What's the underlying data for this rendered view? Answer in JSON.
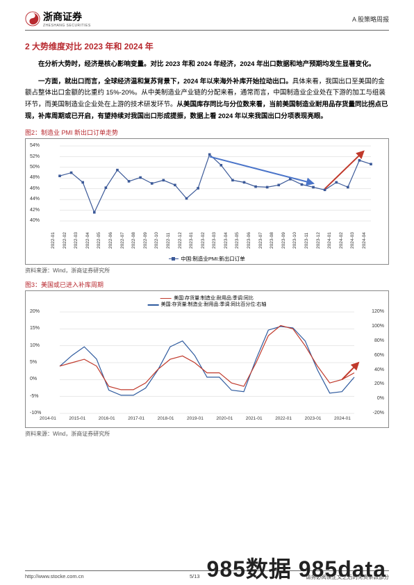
{
  "header": {
    "brand": "浙商证券",
    "brand_sub": "ZHESHANG SECURITIES",
    "doc_type": "A 股策略周报",
    "logo_color": "#b8292f"
  },
  "section": {
    "title": "2 大势维度对比 2023 年和 2024 年"
  },
  "paragraphs": {
    "p1_a": "在分析大势时，经济是核心影响变量。对比 2023 年和 2024 年经济，2024 年出口数据和地产预期均发生显著变化。",
    "p2_lead": "一方面，就出口而言，全球经济温和复苏背景下，2024 年以来海外补库开始拉动出口。",
    "p2_rest": "具体来看，我国出口至美国的金额占整体出口金额的比重约 15%-20%。从中美制造业产业链的分配来看，通常而言，中国制造业企业处在下游的加工与组装环节，而美国制造业企业处在上游的技术研发环节。",
    "p2_tail_bold": "从美国库存同比与分位数来看，当前美国制造业耐用品存货量同比拐点已现，补库周期或已开启，有望持续对我国出口形成提振，数据上看 2024 年以来我国出口分项表现亮眼。"
  },
  "fig2": {
    "title": "图2：制造业 PMI 新出口订单走势",
    "source": "资料来源：Wind，浙商证券研究所",
    "legend": "中国:制造业PMI:新出口订单",
    "type": "line",
    "color_series": "#3b5998",
    "color_arrow_down": "#4a74c9",
    "color_arrow_up": "#c0392b",
    "ylim": [
      40,
      54
    ],
    "ytick_step": 2,
    "y_ticks": [
      "40%",
      "42%",
      "44%",
      "46%",
      "48%",
      "50%",
      "52%",
      "54%"
    ],
    "x_labels": [
      "2022-01",
      "2022-02",
      "2022-03",
      "2022-04",
      "2022-05",
      "2022-06",
      "2022-07",
      "2022-08",
      "2022-09",
      "2022-10",
      "2022-11",
      "2022-12",
      "2023-01",
      "2023-02",
      "2023-03",
      "2023-04",
      "2023-05",
      "2023-06",
      "2023-07",
      "2023-08",
      "2023-09",
      "2023-10",
      "2023-11",
      "2023-12",
      "2024-01",
      "2024-02",
      "2024-03",
      "2024-04"
    ],
    "values": [
      48.4,
      49.0,
      47.2,
      41.6,
      46.2,
      49.5,
      47.4,
      48.1,
      47.0,
      47.6,
      46.7,
      44.2,
      46.1,
      52.4,
      50.4,
      47.6,
      47.2,
      46.4,
      46.3,
      46.7,
      47.8,
      46.8,
      46.3,
      45.8,
      47.2,
      46.3,
      51.3,
      50.6
    ],
    "background_color": "#ffffff",
    "grid_color": "#d0d0d0",
    "title_fontsize": 9,
    "label_fontsize": 7
  },
  "fig3": {
    "title": "图3：美国或已进入补库周期",
    "source": "资料来源：Wind，浙商证券研究所",
    "type": "dual-line",
    "legend_红": "美国:存货量:制造业:耐用品:季调:同比",
    "legend_蓝": "美国:存货量:制造业:耐用品:季调:同比百分位:右轴",
    "color_red": "#c0392b",
    "color_blue": "#2e5a9e",
    "y1_lim": [
      -10,
      20
    ],
    "y1_ticks": [
      "-10%",
      "-5%",
      "0%",
      "5%",
      "10%",
      "15%",
      "20%"
    ],
    "y2_lim": [
      -20,
      120
    ],
    "y2_ticks": [
      "-20%",
      "0%",
      "20%",
      "40%",
      "60%",
      "80%",
      "100%",
      "120%"
    ],
    "x_labels": [
      "2014-01",
      "2015-01",
      "2016-01",
      "2017-01",
      "2018-01",
      "2019-01",
      "2020-01",
      "2021-01",
      "2022-01",
      "2023-01",
      "2024-01"
    ],
    "red_values": [
      4,
      5,
      6,
      4,
      -2,
      -3,
      -3,
      -1,
      3,
      6,
      7,
      5,
      2,
      2,
      -1,
      -2,
      5,
      13,
      16,
      15,
      10,
      4,
      -1,
      0,
      2
    ],
    "blue_values": [
      45,
      60,
      72,
      55,
      12,
      5,
      5,
      15,
      40,
      72,
      80,
      60,
      30,
      30,
      12,
      10,
      55,
      95,
      100,
      98,
      80,
      40,
      8,
      10,
      30
    ],
    "background_color": "#ffffff",
    "grid_color": "#d0d0d0"
  },
  "footer": {
    "url": "http://www.stocke.com.cn",
    "page": "5/13",
    "disclaimer": "请务必阅读正文之后的免责条款部分"
  },
  "watermark": "985数据  985data"
}
